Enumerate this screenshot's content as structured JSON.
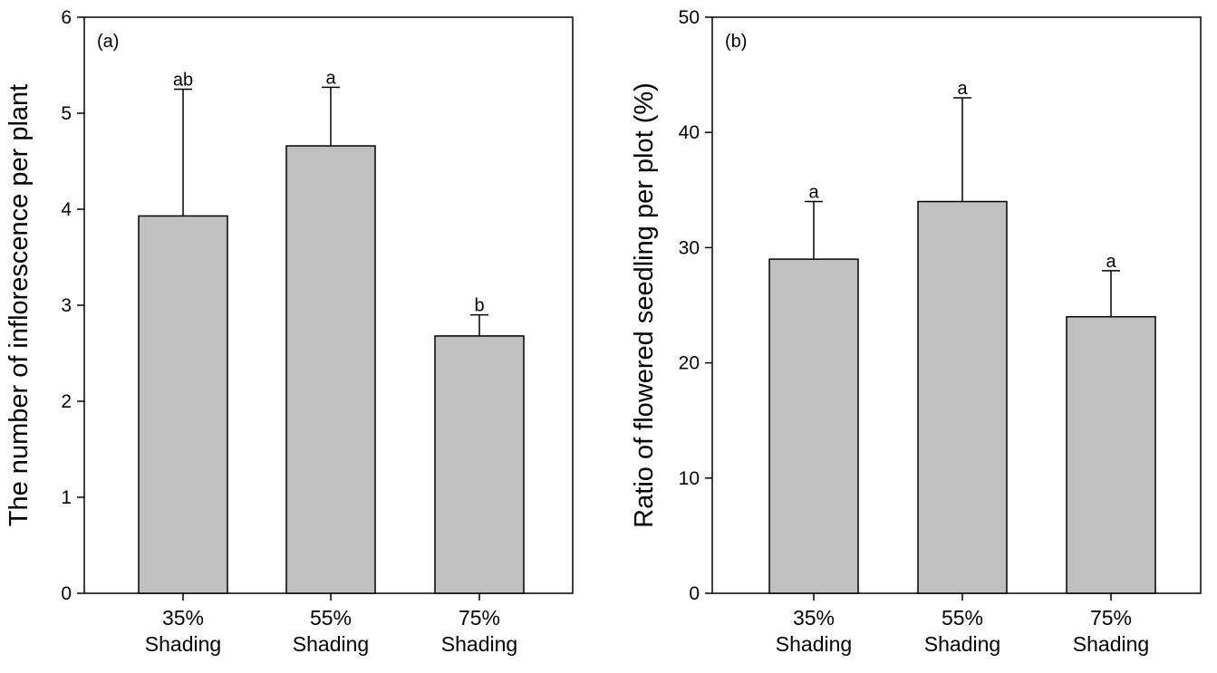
{
  "chart_data": [
    {
      "type": "bar",
      "panel_label": "(a)",
      "ylabel": "The number of inflorescence per plant",
      "xlabel": "",
      "categories": [
        {
          "line1": "35%",
          "line2": "Shading"
        },
        {
          "line1": "55%",
          "line2": "Shading"
        },
        {
          "line1": "75%",
          "line2": "Shading"
        }
      ],
      "values": [
        3.93,
        4.66,
        2.68
      ],
      "error_upper": [
        5.25,
        5.27,
        2.9
      ],
      "significance": [
        "ab",
        "a",
        "b"
      ],
      "ylim": [
        0,
        6
      ],
      "yticks": [
        "0",
        "1",
        "2",
        "3",
        "4",
        "5",
        "6"
      ],
      "bar_color": "#c0c0c0",
      "grid": false
    },
    {
      "type": "bar",
      "panel_label": "(b)",
      "ylabel": "Ratio of flowered seedling per plot (%)",
      "xlabel": "",
      "categories": [
        {
          "line1": "35%",
          "line2": "Shading"
        },
        {
          "line1": "55%",
          "line2": "Shading"
        },
        {
          "line1": "75%",
          "line2": "Shading"
        }
      ],
      "values": [
        29,
        34,
        24
      ],
      "error_upper": [
        34,
        43,
        28
      ],
      "significance": [
        "a",
        "a",
        "a"
      ],
      "ylim": [
        0,
        50
      ],
      "yticks": [
        "0",
        "10",
        "20",
        "30",
        "40",
        "50"
      ],
      "bar_color": "#c0c0c0",
      "grid": false
    }
  ]
}
